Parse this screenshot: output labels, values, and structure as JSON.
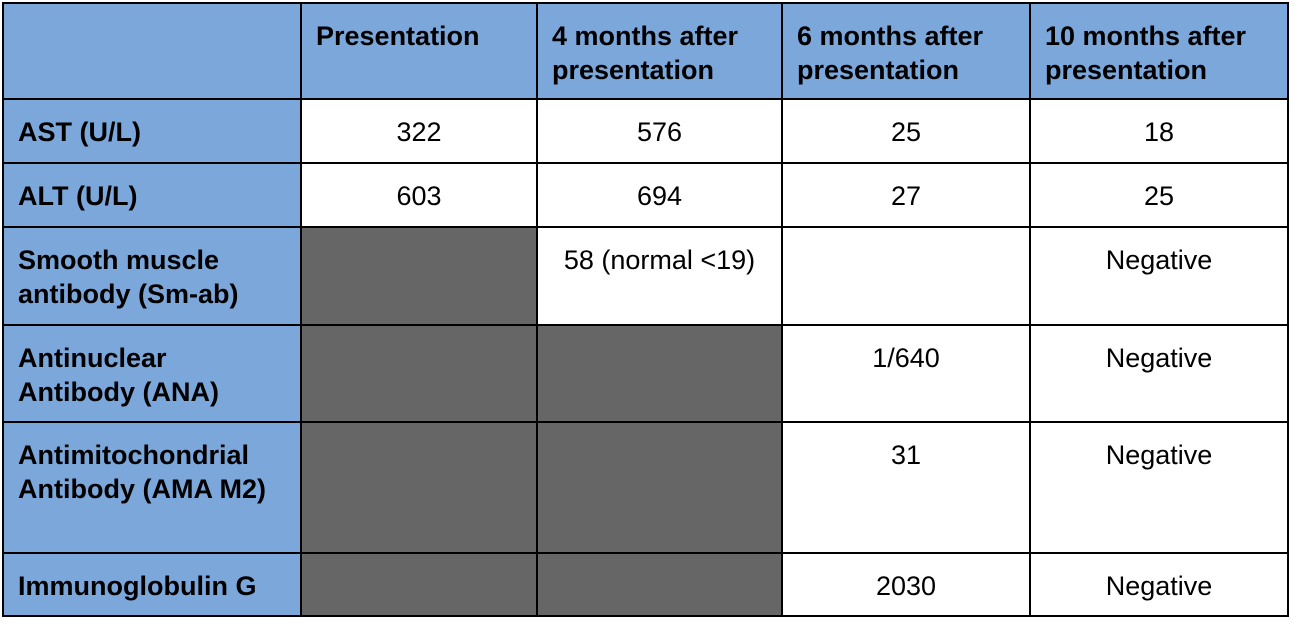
{
  "headers": [
    "",
    "Presentation",
    "4 months after presentation",
    "6 months after presentation",
    "10 months after presentation"
  ],
  "rows": [
    {
      "label": "AST (U/L)",
      "cells": [
        "322",
        "576",
        "25",
        "18"
      ]
    },
    {
      "label": "ALT (U/L)",
      "cells": [
        "603",
        "694",
        "27",
        "25"
      ]
    },
    {
      "label": "Smooth muscle antibody (Sm-ab)",
      "cells": [
        null,
        "58 (normal <19)",
        "",
        "Negative"
      ]
    },
    {
      "label": "Antinuclear Antibody (ANA)",
      "cells": [
        null,
        null,
        "1/640",
        "Negative"
      ]
    },
    {
      "label": "Antimitochondrial Antibody (AMA M2)",
      "cells": [
        null,
        null,
        "31",
        "Negative"
      ]
    },
    {
      "label": "Immunoglobulin G",
      "cells": [
        null,
        null,
        "2030",
        "Negative"
      ]
    }
  ],
  "colors": {
    "header_bg": "#7ba7db",
    "not_available_bg": "#666666",
    "cell_bg": "#ffffff",
    "border": "#000000"
  }
}
